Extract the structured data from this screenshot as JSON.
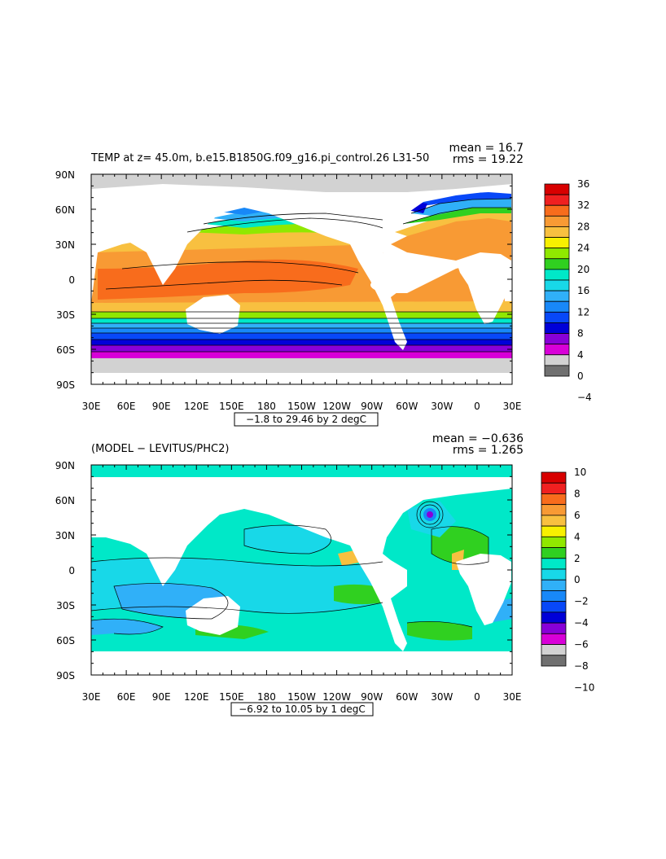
{
  "panels": [
    {
      "title": "TEMP at z=  45.0m, b.e15.B1850G.f09_g16.pi_control.26 L31-50",
      "mean_text": "mean = 16.7",
      "rms_text": "rms = 19.22",
      "range_text": "−1.8 to 29.46 by 2 degC",
      "colorbar_labels": [
        "36",
        "32",
        "28",
        "24",
        "20",
        "16",
        "12",
        "8",
        "4",
        "0",
        "−4"
      ],
      "colorbar_colors": [
        "#d80000",
        "#f02020",
        "#f86c1c",
        "#f89a34",
        "#f8c040",
        "#f8f000",
        "#90e800",
        "#30d020",
        "#00e8c8",
        "#18d8e8",
        "#30b0f8",
        "#1888f8",
        "#0848f8",
        "#0000d8",
        "#8800d8",
        "#d800d8",
        "#d2d2d2",
        "#707070"
      ]
    },
    {
      "title": "(MODEL − LEVITUS/PHC2)",
      "mean_text": "mean = −0.636",
      "rms_text": "rms = 1.265",
      "range_text": "−6.92 to 10.05 by 1 degC",
      "colorbar_labels": [
        "10",
        "8",
        "6",
        "4",
        "2",
        "0",
        "−2",
        "−4",
        "−6",
        "−8",
        "−10"
      ],
      "colorbar_colors": [
        "#d80000",
        "#f02020",
        "#f86c1c",
        "#f89a34",
        "#f8c040",
        "#f8f000",
        "#90e800",
        "#30d020",
        "#00e8c8",
        "#18d8e8",
        "#30b0f8",
        "#1888f8",
        "#0848f8",
        "#0000d8",
        "#8800d8",
        "#d800d8",
        "#d2d2d2",
        "#707070"
      ]
    }
  ],
  "x_tick_labels": [
    "30E",
    "60E",
    "90E",
    "120E",
    "150E",
    "180",
    "150W",
    "120W",
    "90W",
    "60W",
    "30W",
    "0",
    "30E"
  ],
  "y_tick_labels": [
    "90N",
    "60N",
    "30N",
    "0",
    "30S",
    "60S",
    "90S"
  ]
}
